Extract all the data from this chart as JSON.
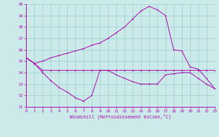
{
  "xlabel": "Windchill (Refroidissement éolien,°C)",
  "xlim": [
    0,
    23
  ],
  "ylim": [
    11,
    20
  ],
  "xticks": [
    0,
    1,
    2,
    3,
    4,
    5,
    6,
    7,
    8,
    9,
    10,
    11,
    12,
    13,
    14,
    15,
    16,
    17,
    18,
    19,
    20,
    21,
    22,
    23
  ],
  "yticks": [
    11,
    12,
    13,
    14,
    15,
    16,
    17,
    18,
    19,
    20
  ],
  "bg_color": "#cceaea",
  "line_color": "#aa00aa",
  "grid_color": "#99cccc",
  "series1_x": [
    0,
    1,
    2,
    3,
    4,
    5,
    6,
    7,
    8,
    9,
    10,
    11,
    12,
    13,
    14,
    15,
    16,
    17,
    18,
    19,
    20,
    21,
    22,
    23
  ],
  "series1_y": [
    15.3,
    14.8,
    14.2,
    14.2,
    14.2,
    14.2,
    14.2,
    14.2,
    14.2,
    14.2,
    14.2,
    14.2,
    14.2,
    14.2,
    14.2,
    14.2,
    14.2,
    14.2,
    14.2,
    14.2,
    14.2,
    14.2,
    14.2,
    14.2
  ],
  "series2_x": [
    0,
    1,
    2,
    3,
    4,
    5,
    6,
    7,
    8,
    9,
    10,
    11,
    12,
    13,
    14,
    15,
    16,
    17,
    18,
    19,
    20,
    21,
    22,
    23
  ],
  "series2_y": [
    15.3,
    14.8,
    15.0,
    15.3,
    15.5,
    15.7,
    15.9,
    16.1,
    16.4,
    16.6,
    17.0,
    17.5,
    18.0,
    18.7,
    19.4,
    19.8,
    19.5,
    19.0,
    16.0,
    15.9,
    14.5,
    14.3,
    13.5,
    12.6
  ],
  "series3_x": [
    0,
    1,
    2,
    3,
    4,
    5,
    6,
    7,
    8,
    9,
    10,
    11,
    12,
    13,
    14,
    15,
    16,
    17,
    18,
    19,
    20,
    21,
    22,
    23
  ],
  "series3_y": [
    15.3,
    14.8,
    14.0,
    13.3,
    12.7,
    12.3,
    11.8,
    11.5,
    12.0,
    14.2,
    14.2,
    13.8,
    13.5,
    13.2,
    13.0,
    13.0,
    13.0,
    13.8,
    13.9,
    14.0,
    14.0,
    13.5,
    13.0,
    12.6
  ]
}
